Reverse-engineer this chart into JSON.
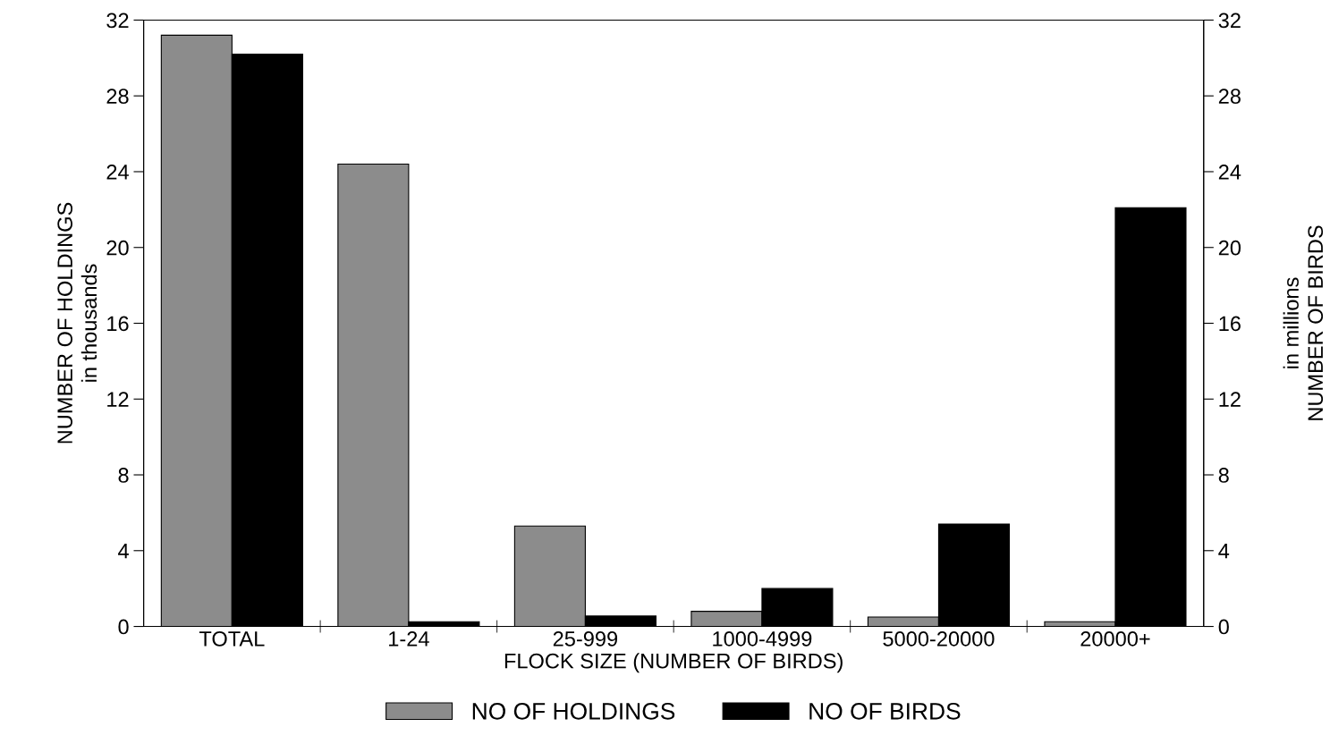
{
  "chart_data": {
    "type": "bar",
    "xlabel": "FLOCK SIZE (NUMBER OF BIRDS)",
    "ylabel": "NUMBER OF HOLDINGS\nin thousands",
    "y2label": "in millions\nNUMBER OF BIRDS",
    "categories": [
      "TOTAL",
      "1-24",
      "25-999",
      "1000-4999",
      "5000-20000",
      "20000+"
    ],
    "series": [
      {
        "name": "NO OF HOLDINGS",
        "color": "#8c8c8c",
        "values": [
          31.2,
          24.4,
          5.3,
          0.8,
          0.5,
          0.25
        ]
      },
      {
        "name": "NO OF BIRDS",
        "color": "#000000",
        "values": [
          30.2,
          0.25,
          0.55,
          2.0,
          5.4,
          22.1
        ]
      }
    ],
    "ylim": [
      0,
      32
    ],
    "yticks": [
      0,
      4,
      8,
      12,
      16,
      20,
      24,
      28,
      32
    ],
    "y2lim": [
      0,
      32
    ],
    "y2ticks": [
      0,
      4,
      8,
      12,
      16,
      20,
      24,
      28,
      32
    ],
    "grid": false,
    "legend": "bottom"
  }
}
